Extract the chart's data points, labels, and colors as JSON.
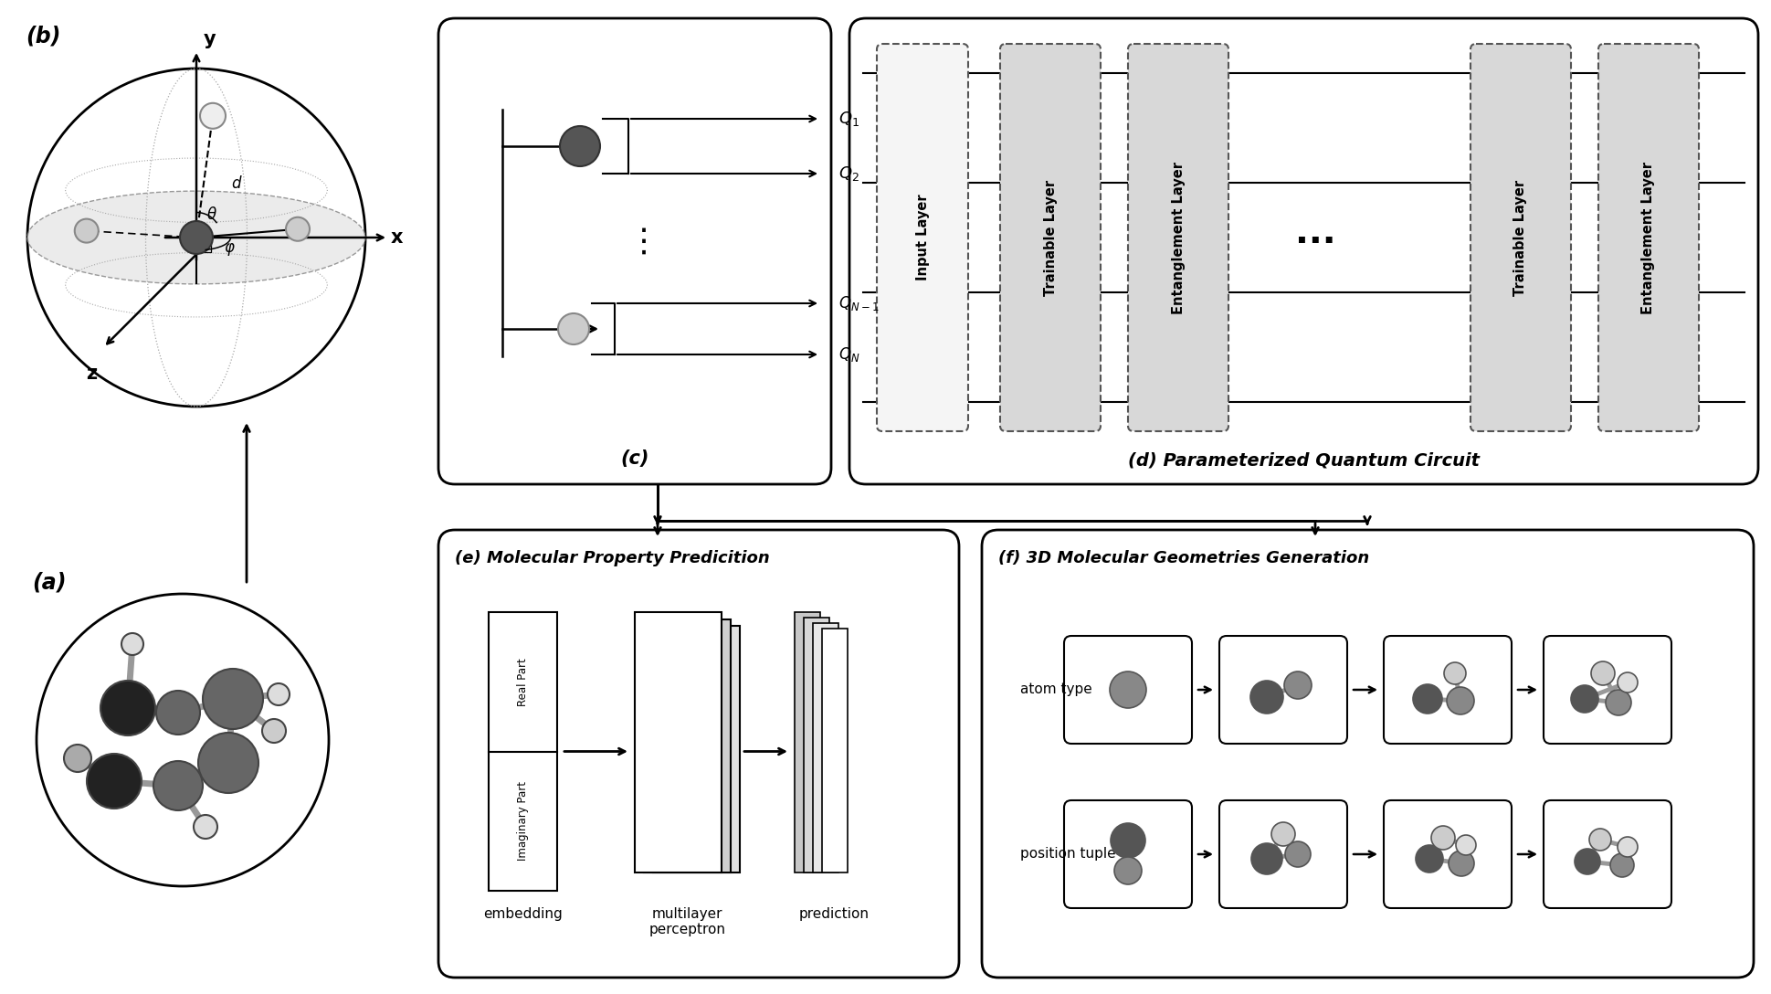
{
  "bg_color": "#ffffff",
  "label_a": "(a)",
  "label_b": "(b)",
  "label_c": "(c)",
  "label_d": "(d) Parameterized Quantum Circuit",
  "label_e": "(e) Molecular Property Predicition",
  "label_f": "(f) 3D Molecular Geometries Generation",
  "quantum_layers": [
    "Input Layer",
    "Trainable Layer",
    "Entanglement Layer",
    "Trainable Layer",
    "Entanglement Layer"
  ],
  "qubit_labels_top": [
    "Q_1",
    "Q_2"
  ],
  "qubit_labels_bot": [
    "Q_{N-1}",
    "Q_N"
  ],
  "embedding_labels": [
    "Real Part",
    "Imaginary Part"
  ],
  "bottom_labels": [
    "embedding",
    "multilayer\nperceptron",
    "prediction"
  ],
  "atom_type_label": "atom type",
  "position_tuple_label": "position tuple",
  "sphere_color": "#e8e8e8",
  "atom_dark": "#555555",
  "atom_mid": "#888888",
  "atom_light": "#cccccc",
  "atom_white": "#eeeeee",
  "wire_color": "#000000",
  "layer_bg": "#d8d8d8",
  "layer_light": "#f0f0f0"
}
